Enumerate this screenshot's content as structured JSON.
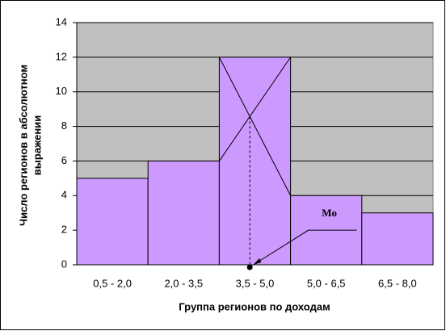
{
  "chart_data": {
    "type": "bar",
    "categories": [
      "0,5 - 2,0",
      "2,0 - 3,5",
      "3,5 - 5,0",
      "5,0 - 6,5",
      "6,5 - 8,0"
    ],
    "values": [
      5,
      6,
      12,
      4,
      3
    ],
    "color": "#cc99ff",
    "plot_background": "#c0c0c0",
    "ylim": [
      0,
      14
    ],
    "yticks": [
      0,
      2,
      4,
      6,
      8,
      10,
      12,
      14
    ],
    "grid": true,
    "xlabel": "Группа регионов по доходам",
    "ylabel": [
      "Число регионов в абсолютном",
      "выражении"
    ],
    "annotation": "Mo"
  }
}
